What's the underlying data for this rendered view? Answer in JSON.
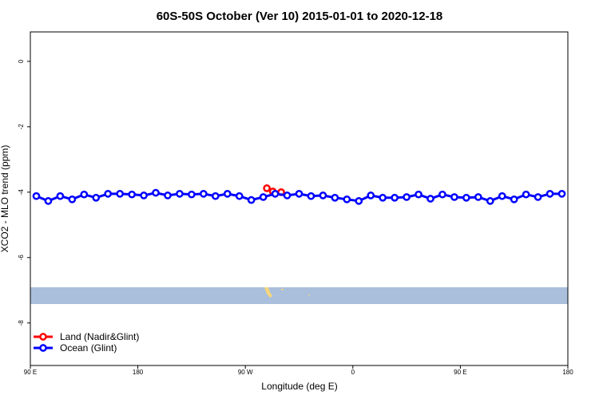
{
  "chart_data": {
    "type": "line",
    "title": "60S-50S October (Ver 10)   2015-01-01 to 2020-12-18",
    "xlabel": "Longitude (deg E)",
    "ylabel": "XCO2 - MLO trend (ppm)",
    "xlim": [
      90,
      540
    ],
    "ylim": [
      -9.3,
      0.9
    ],
    "xticks": [
      {
        "value": 90,
        "label": "90 E"
      },
      {
        "value": 180,
        "label": "180"
      },
      {
        "value": 270,
        "label": "90 W"
      },
      {
        "value": 360,
        "label": "0"
      },
      {
        "value": 450,
        "label": "90 E"
      },
      {
        "value": 540,
        "label": "180"
      }
    ],
    "yticks": [
      0,
      -2,
      -4,
      -6,
      -8
    ],
    "legend": "bottom-left",
    "series": [
      {
        "name": "Land (Nadir&Glint)",
        "color": "#ff0000",
        "x": [
          288,
          293,
          300
        ],
        "values": [
          -3.88,
          -3.98,
          -4.0
        ]
      },
      {
        "name": "Ocean (Glint)",
        "color": "#0000ff",
        "x": [
          95,
          105,
          115,
          125,
          135,
          145,
          155,
          165,
          175,
          185,
          195,
          205,
          215,
          225,
          235,
          245,
          255,
          265,
          275,
          285,
          295,
          305,
          315,
          325,
          335,
          345,
          355,
          365,
          375,
          385,
          395,
          405,
          415,
          425,
          435,
          445,
          455,
          465,
          475,
          485,
          495,
          505,
          515,
          525,
          535
        ],
        "values": [
          -4.12,
          -4.27,
          -4.12,
          -4.22,
          -4.07,
          -4.17,
          -4.05,
          -4.05,
          -4.07,
          -4.1,
          -4.02,
          -4.1,
          -4.05,
          -4.07,
          -4.05,
          -4.12,
          -4.05,
          -4.12,
          -4.24,
          -4.15,
          -4.05,
          -4.1,
          -4.05,
          -4.12,
          -4.1,
          -4.17,
          -4.22,
          -4.27,
          -4.1,
          -4.17,
          -4.17,
          -4.15,
          -4.07,
          -4.2,
          -4.07,
          -4.15,
          -4.17,
          -4.15,
          -4.27,
          -4.12,
          -4.22,
          -4.07,
          -4.15,
          -4.05,
          -4.05
        ]
      }
    ]
  }
}
